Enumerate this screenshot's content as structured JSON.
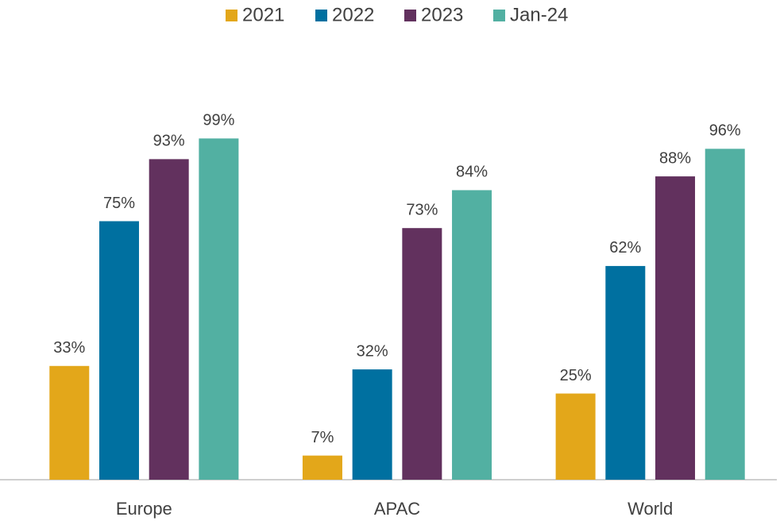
{
  "chart_data": {
    "type": "bar",
    "categories": [
      "Europe",
      "APAC",
      "World"
    ],
    "series": [
      {
        "name": "2021",
        "color": "#e3a71a",
        "values": [
          33,
          7,
          25
        ],
        "value_labels": [
          "33%",
          "7%",
          "25%"
        ]
      },
      {
        "name": "2022",
        "color": "#0070a0",
        "values": [
          75,
          32,
          62
        ],
        "value_labels": [
          "75%",
          "32%",
          "62%"
        ]
      },
      {
        "name": "2023",
        "color": "#62315e",
        "values": [
          93,
          73,
          88
        ],
        "value_labels": [
          "93%",
          "73%",
          "88%"
        ]
      },
      {
        "name": "Jan-24",
        "color": "#52b0a2",
        "values": [
          99,
          84,
          96
        ],
        "value_labels": [
          "99%",
          "84%",
          "96%"
        ]
      }
    ],
    "ylim": [
      0,
      100
    ],
    "legend": "top"
  }
}
